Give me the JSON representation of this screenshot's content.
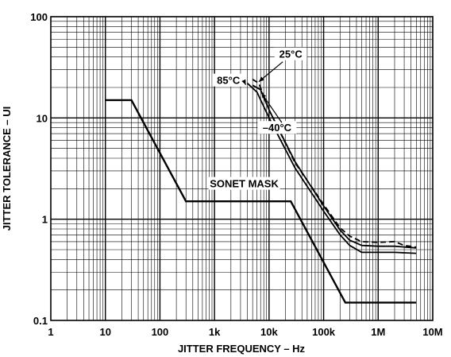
{
  "chart_data": {
    "type": "line",
    "x_scale": "log",
    "y_scale": "log",
    "xlim": [
      1,
      10000000
    ],
    "ylim": [
      0.1,
      100
    ],
    "xlabel": "JITTER FREQUENCY – Hz",
    "ylabel": "JITTER TOLERANCE – UI",
    "x_ticks": [
      {
        "value": 1,
        "label": "1"
      },
      {
        "value": 10,
        "label": "10"
      },
      {
        "value": 100,
        "label": "100"
      },
      {
        "value": 1000,
        "label": "1k"
      },
      {
        "value": 10000,
        "label": "10k"
      },
      {
        "value": 100000,
        "label": "100k"
      },
      {
        "value": 1000000,
        "label": "1M"
      },
      {
        "value": 10000000,
        "label": "10M"
      }
    ],
    "y_ticks": [
      {
        "value": 0.1,
        "label": "0.1"
      },
      {
        "value": 1,
        "label": "1"
      },
      {
        "value": 10,
        "label": "10"
      },
      {
        "value": 100,
        "label": "100"
      }
    ],
    "grid": true,
    "series": [
      {
        "name": "SONET MASK",
        "style": "solid-thick",
        "x": [
          10,
          30,
          300,
          25000,
          250000,
          5000000
        ],
        "y": [
          15,
          15,
          1.5,
          1.5,
          0.15,
          0.15
        ]
      },
      {
        "name": "85°C",
        "style": "solid",
        "x": [
          4000,
          6000,
          10000,
          30000,
          100000,
          200000,
          300000,
          500000,
          1000000,
          2000000,
          5000000
        ],
        "y": [
          22,
          18,
          10,
          3.2,
          1.2,
          0.7,
          0.55,
          0.47,
          0.47,
          0.47,
          0.46
        ]
      },
      {
        "name": "25°C",
        "style": "dashed",
        "x": [
          5000,
          6500,
          10000,
          30000,
          100000,
          200000,
          300000,
          500000,
          1000000,
          2000000,
          3000000,
          5000000
        ],
        "y": [
          24,
          22,
          12,
          3.6,
          1.4,
          0.82,
          0.68,
          0.6,
          0.59,
          0.6,
          0.55,
          0.53
        ]
      },
      {
        "name": "–40°C",
        "style": "solid",
        "x": [
          5000,
          7000,
          10000,
          30000,
          100000,
          200000,
          300000,
          500000,
          1000000,
          2000000,
          5000000
        ],
        "y": [
          21,
          19,
          12,
          3.7,
          1.35,
          0.78,
          0.62,
          0.55,
          0.54,
          0.54,
          0.52
        ]
      }
    ],
    "annotations": [
      {
        "text": "25°C",
        "x": 25000,
        "y": 40
      },
      {
        "text": "85°C",
        "x": 1800,
        "y": 22
      },
      {
        "text": "–40°C",
        "x": 14000,
        "y": 7.5
      },
      {
        "text": "SONET MASK",
        "x": 3500,
        "y": 2.1
      }
    ]
  }
}
